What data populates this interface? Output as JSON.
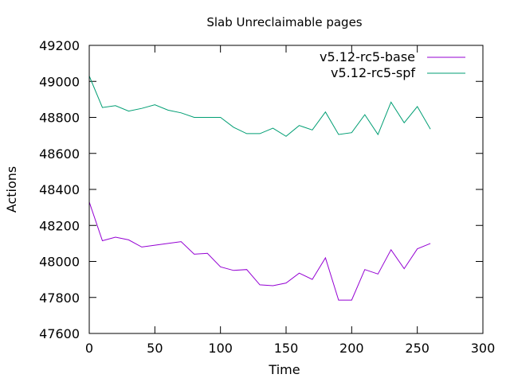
{
  "chart_data": {
    "type": "line",
    "title": "Slab Unreclaimable pages",
    "xlabel": "Time",
    "ylabel": "Actions",
    "xlim": [
      0,
      300
    ],
    "ylim": [
      47600,
      49200
    ],
    "xticks": [
      0,
      50,
      100,
      150,
      200,
      250,
      300
    ],
    "yticks": [
      47600,
      47800,
      48000,
      48200,
      48400,
      48600,
      48800,
      49000,
      49200
    ],
    "grid": false,
    "legend_position": "top-right",
    "series": [
      {
        "name": "v5.12-rc5-base",
        "color": "#9400d3",
        "x": [
          0,
          10,
          20,
          30,
          40,
          50,
          60,
          70,
          80,
          90,
          100,
          110,
          120,
          130,
          140,
          150,
          160,
          170,
          180,
          190,
          200,
          210,
          220,
          230,
          240,
          250,
          260
        ],
        "y": [
          48330,
          48115,
          48135,
          48120,
          48080,
          48090,
          48100,
          48110,
          48040,
          48045,
          47970,
          47950,
          47955,
          47870,
          47865,
          47880,
          47935,
          47900,
          48020,
          47785,
          47785,
          47955,
          47930,
          48065,
          47960,
          48070,
          48100
        ]
      },
      {
        "name": "v5.12-rc5-spf",
        "color": "#009e73",
        "x": [
          0,
          10,
          20,
          30,
          40,
          50,
          60,
          70,
          80,
          90,
          100,
          110,
          120,
          130,
          140,
          150,
          160,
          170,
          180,
          190,
          200,
          210,
          220,
          230,
          240,
          250,
          260
        ],
        "y": [
          49030,
          48855,
          48865,
          48835,
          48850,
          48870,
          48840,
          48825,
          48800,
          48800,
          48800,
          48745,
          48710,
          48710,
          48740,
          48695,
          48755,
          48730,
          48830,
          48705,
          48715,
          48815,
          48705,
          48885,
          48770,
          48860,
          48735
        ]
      }
    ]
  }
}
